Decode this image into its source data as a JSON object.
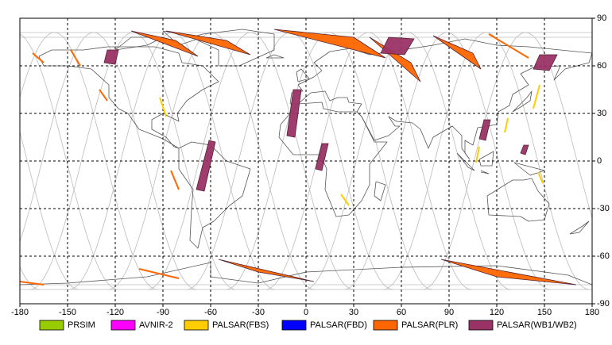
{
  "chart_data": {
    "type": "map",
    "xlim": [
      -180,
      180
    ],
    "ylim": [
      -90,
      90
    ],
    "xticks": [
      -180,
      -150,
      -120,
      -90,
      -60,
      -30,
      0,
      30,
      60,
      90,
      120,
      150,
      180
    ],
    "yticks": [
      90,
      60,
      30,
      0,
      -30,
      -60,
      -90
    ],
    "grid": true,
    "series": [
      {
        "name": "PRSIM",
        "color": "#99cc00"
      },
      {
        "name": "AVNIR-2",
        "color": "#ff00ff"
      },
      {
        "name": "PALSAR(FBS)",
        "color": "#ffcc00",
        "swaths": [
          [
            [
              143,
              33
            ],
            [
              147,
              48
            ]
          ],
          [
            [
              22,
              -21
            ],
            [
              27,
              -28
            ]
          ],
          [
            [
              125,
              18
            ],
            [
              127,
              27
            ]
          ],
          [
            [
              107,
              -1
            ],
            [
              109,
              9
            ]
          ],
          [
            [
              -92,
              40
            ],
            [
              -88,
              28
            ]
          ],
          [
            [
              146,
              -7
            ],
            [
              149,
              -14
            ]
          ]
        ]
      },
      {
        "name": "PALSAR(FBD)",
        "color": "#0000ff"
      },
      {
        "name": "PALSAR(PLR)",
        "color": "#ff6600",
        "swaths": [
          [
            [
              -172,
              68
            ],
            [
              -165,
              62
            ]
          ],
          [
            [
              -148,
              70
            ],
            [
              -142,
              60
            ]
          ],
          [
            [
              -110,
              82
            ],
            [
              -82,
              76
            ],
            [
              -68,
              66
            ]
          ],
          [
            [
              -88,
              82
            ],
            [
              -50,
              76
            ],
            [
              -35,
              67
            ]
          ],
          [
            [
              -20,
              83
            ],
            [
              30,
              78
            ],
            [
              50,
              65
            ]
          ],
          [
            [
              40,
              78
            ],
            [
              66,
              62
            ],
            [
              72,
              50
            ]
          ],
          [
            [
              80,
              79
            ],
            [
              105,
              68
            ],
            [
              110,
              58
            ]
          ],
          [
            [
              115,
              80
            ],
            [
              140,
              65
            ]
          ],
          [
            [
              -55,
              -62
            ],
            [
              -30,
              -70
            ],
            [
              5,
              -76
            ]
          ],
          [
            [
              -105,
              -68
            ],
            [
              -80,
              -74
            ]
          ],
          [
            [
              85,
              -62
            ],
            [
              120,
              -73
            ],
            [
              170,
              -78
            ]
          ],
          [
            [
              -180,
              -76
            ],
            [
              -165,
              -78
            ]
          ],
          [
            [
              -130,
              45
            ],
            [
              -125,
              38
            ]
          ],
          [
            [
              -85,
              -6
            ],
            [
              -80,
              -18
            ]
          ]
        ]
      },
      {
        "name": "PALSAR(WB1/WB2)",
        "color": "#993366",
        "swaths": [
          [
            [
              -125,
              70
            ],
            [
              -118,
              70
            ],
            [
              -120,
              61
            ],
            [
              -127,
              62
            ]
          ],
          [
            [
              -61,
              13
            ],
            [
              -57,
              12
            ],
            [
              -64,
              -19
            ],
            [
              -69,
              -18
            ]
          ],
          [
            [
              -8,
              45
            ],
            [
              -3,
              45
            ],
            [
              -7,
              15
            ],
            [
              -12,
              16
            ]
          ],
          [
            [
              10,
              11
            ],
            [
              14,
              11
            ],
            [
              10,
              -6
            ],
            [
              6,
              -5
            ]
          ],
          [
            [
              52,
              78
            ],
            [
              68,
              77
            ],
            [
              62,
              67
            ],
            [
              47,
              68
            ]
          ],
          [
            [
              112,
              26
            ],
            [
              116,
              26
            ],
            [
              113,
              13
            ],
            [
              109,
              14
            ]
          ],
          [
            [
              147,
              67
            ],
            [
              158,
              67
            ],
            [
              153,
              57
            ],
            [
              143,
              58
            ]
          ],
          [
            [
              137,
              10
            ],
            [
              140,
              10
            ],
            [
              138,
              4
            ],
            [
              135,
              5
            ]
          ]
        ]
      }
    ]
  }
}
